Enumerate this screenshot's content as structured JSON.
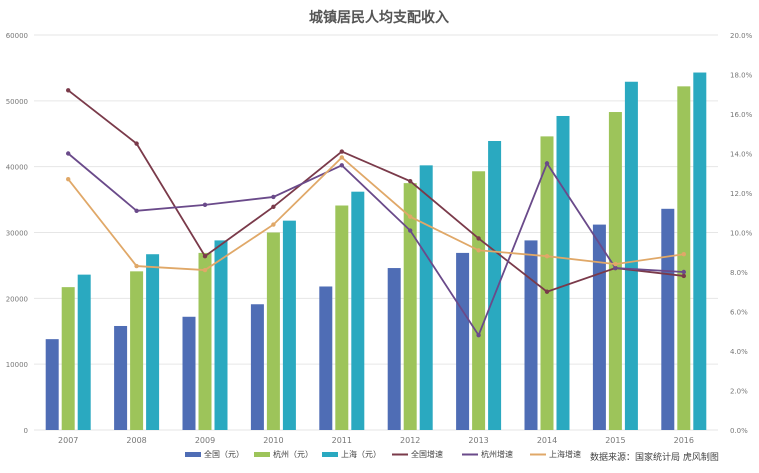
{
  "chart_data": {
    "type": "bar",
    "title": "城镇居民人均支配收入",
    "categories": [
      "2007",
      "2008",
      "2009",
      "2010",
      "2011",
      "2012",
      "2013",
      "2014",
      "2015",
      "2016"
    ],
    "y_left_ticks": [
      "0",
      "10000",
      "20000",
      "30000",
      "40000",
      "50000",
      "60000"
    ],
    "y_right_ticks": [
      "0.0%",
      "2.0%",
      "4.0%",
      "6.0%",
      "8.0%",
      "10.0%",
      "12.0%",
      "14.0%",
      "16.0%",
      "18.0%",
      "20.0%"
    ],
    "ylim_left": [
      0,
      60000
    ],
    "ylim_right": [
      0,
      20
    ],
    "series": [
      {
        "name": "全国（元）",
        "kind": "bar",
        "axis": "left",
        "color": "#4f6db5",
        "values": [
          13800,
          15800,
          17200,
          19100,
          21800,
          24600,
          26900,
          28800,
          31200,
          33600
        ]
      },
      {
        "name": "杭州（元）",
        "kind": "bar",
        "axis": "left",
        "color": "#9dc45a",
        "values": [
          21700,
          24100,
          26900,
          30000,
          34100,
          37500,
          39300,
          44600,
          48300,
          52200
        ]
      },
      {
        "name": "上海（元）",
        "kind": "bar",
        "axis": "left",
        "color": "#2aa9c0",
        "values": [
          23600,
          26700,
          28800,
          31800,
          36200,
          40200,
          43900,
          47700,
          52900,
          54300
        ]
      },
      {
        "name": "全国增速",
        "kind": "line",
        "axis": "right",
        "color": "#7a3a4a",
        "values": [
          17.2,
          14.5,
          8.8,
          11.3,
          14.1,
          12.6,
          9.7,
          7.0,
          8.2,
          7.8
        ]
      },
      {
        "name": "杭州增速",
        "kind": "line",
        "axis": "right",
        "color": "#6a4a8a",
        "values": [
          14.0,
          11.1,
          11.4,
          11.8,
          13.4,
          10.1,
          4.8,
          13.5,
          8.2,
          8.0
        ]
      },
      {
        "name": "上海增速",
        "kind": "line",
        "axis": "right",
        "color": "#e0a868",
        "values": [
          12.7,
          8.3,
          8.1,
          10.4,
          13.8,
          10.8,
          9.1,
          8.8,
          8.4,
          8.9
        ]
      }
    ],
    "legend_position": "bottom",
    "grid": true,
    "source": "数据来源：国家统计局 虎风制图"
  }
}
